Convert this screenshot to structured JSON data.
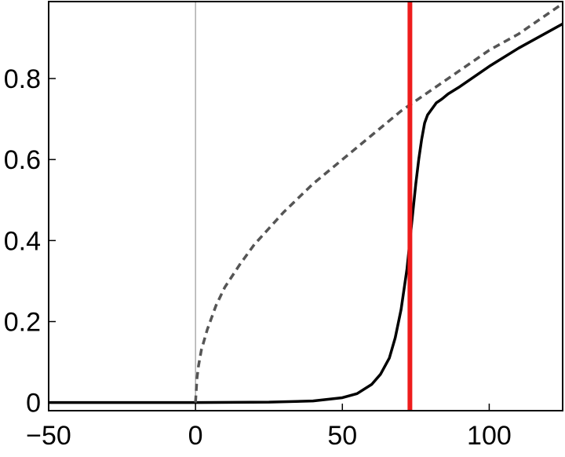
{
  "chart_data": {
    "type": "line",
    "title": "",
    "xlabel": "",
    "ylabel": "",
    "xlim": [
      -50,
      125
    ],
    "ylim": [
      -0.02,
      0.99
    ],
    "x_ticks": [
      -50,
      0,
      50,
      100
    ],
    "x_tick_labels": [
      "−50",
      "0",
      "50",
      "100"
    ],
    "y_ticks": [
      0,
      0.2,
      0.4,
      0.6,
      0.8
    ],
    "y_tick_labels": [
      "0",
      "0.2",
      "0.4",
      "0.6",
      "0.8"
    ],
    "grid": false,
    "legend": "none",
    "colors": {
      "solid": "#000000",
      "dashed": "#555555",
      "vline": "#ee1c1c",
      "zero_line": "#999999"
    },
    "series": [
      {
        "style": "solid",
        "x": [
          -50,
          -25,
          0,
          25,
          40,
          50,
          55,
          60,
          63,
          66,
          68,
          70,
          71,
          72,
          73,
          74,
          75,
          76,
          77,
          78,
          79,
          80,
          81,
          82,
          83,
          84,
          86,
          90,
          100,
          110,
          125
        ],
        "y": [
          0,
          0,
          0,
          0.001,
          0.004,
          0.012,
          0.022,
          0.045,
          0.07,
          0.11,
          0.16,
          0.23,
          0.28,
          0.33,
          0.4,
          0.47,
          0.54,
          0.6,
          0.65,
          0.69,
          0.71,
          0.72,
          0.73,
          0.74,
          0.745,
          0.75,
          0.762,
          0.78,
          0.83,
          0.875,
          0.935
        ]
      },
      {
        "style": "dashed",
        "x": [
          0,
          0.5,
          1,
          2,
          4,
          7,
          10,
          15,
          20,
          25,
          30,
          40,
          50,
          60,
          70,
          80,
          90,
          100,
          110,
          125
        ],
        "y": [
          0,
          0.06,
          0.09,
          0.13,
          0.18,
          0.24,
          0.285,
          0.34,
          0.39,
          0.43,
          0.47,
          0.54,
          0.6,
          0.66,
          0.72,
          0.77,
          0.82,
          0.87,
          0.91,
          0.985
        ]
      }
    ],
    "vertical_lines": [
      {
        "x": 0,
        "style": "thin"
      },
      {
        "x": 73,
        "style": "thick"
      }
    ]
  }
}
